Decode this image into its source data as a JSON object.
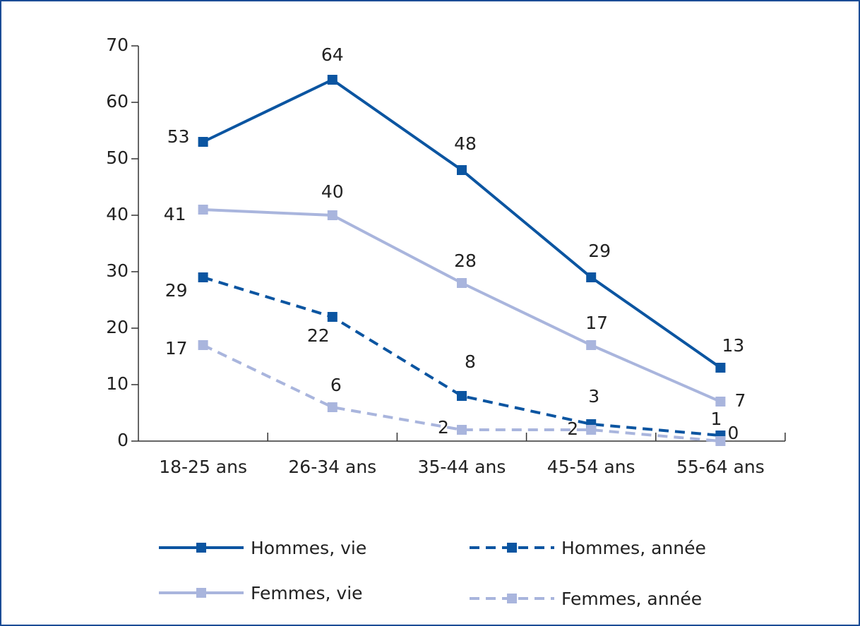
{
  "chart_data": {
    "type": "line",
    "categories": [
      "18-25 ans",
      "26-34 ans",
      "35-44 ans",
      "45-54 ans",
      "55-64 ans"
    ],
    "series": [
      {
        "name": "Hommes, vie",
        "color": "#0b55a1",
        "line_style": "solid",
        "values": [
          53,
          64,
          48,
          29,
          13
        ]
      },
      {
        "name": "Femmes, vie",
        "color": "#a9b5dd",
        "line_style": "solid",
        "values": [
          41,
          40,
          28,
          17,
          7
        ]
      },
      {
        "name": "Hommes, année",
        "color": "#0b55a1",
        "line_style": "dashed",
        "values": [
          29,
          22,
          8,
          3,
          1
        ]
      },
      {
        "name": "Femmes, année",
        "color": "#a9b5dd",
        "line_style": "dashed",
        "values": [
          17,
          6,
          2,
          2,
          0
        ]
      }
    ],
    "ylim": [
      0,
      70
    ],
    "yticks": [
      0,
      10,
      20,
      30,
      40,
      50,
      60,
      70
    ],
    "grid": false
  }
}
